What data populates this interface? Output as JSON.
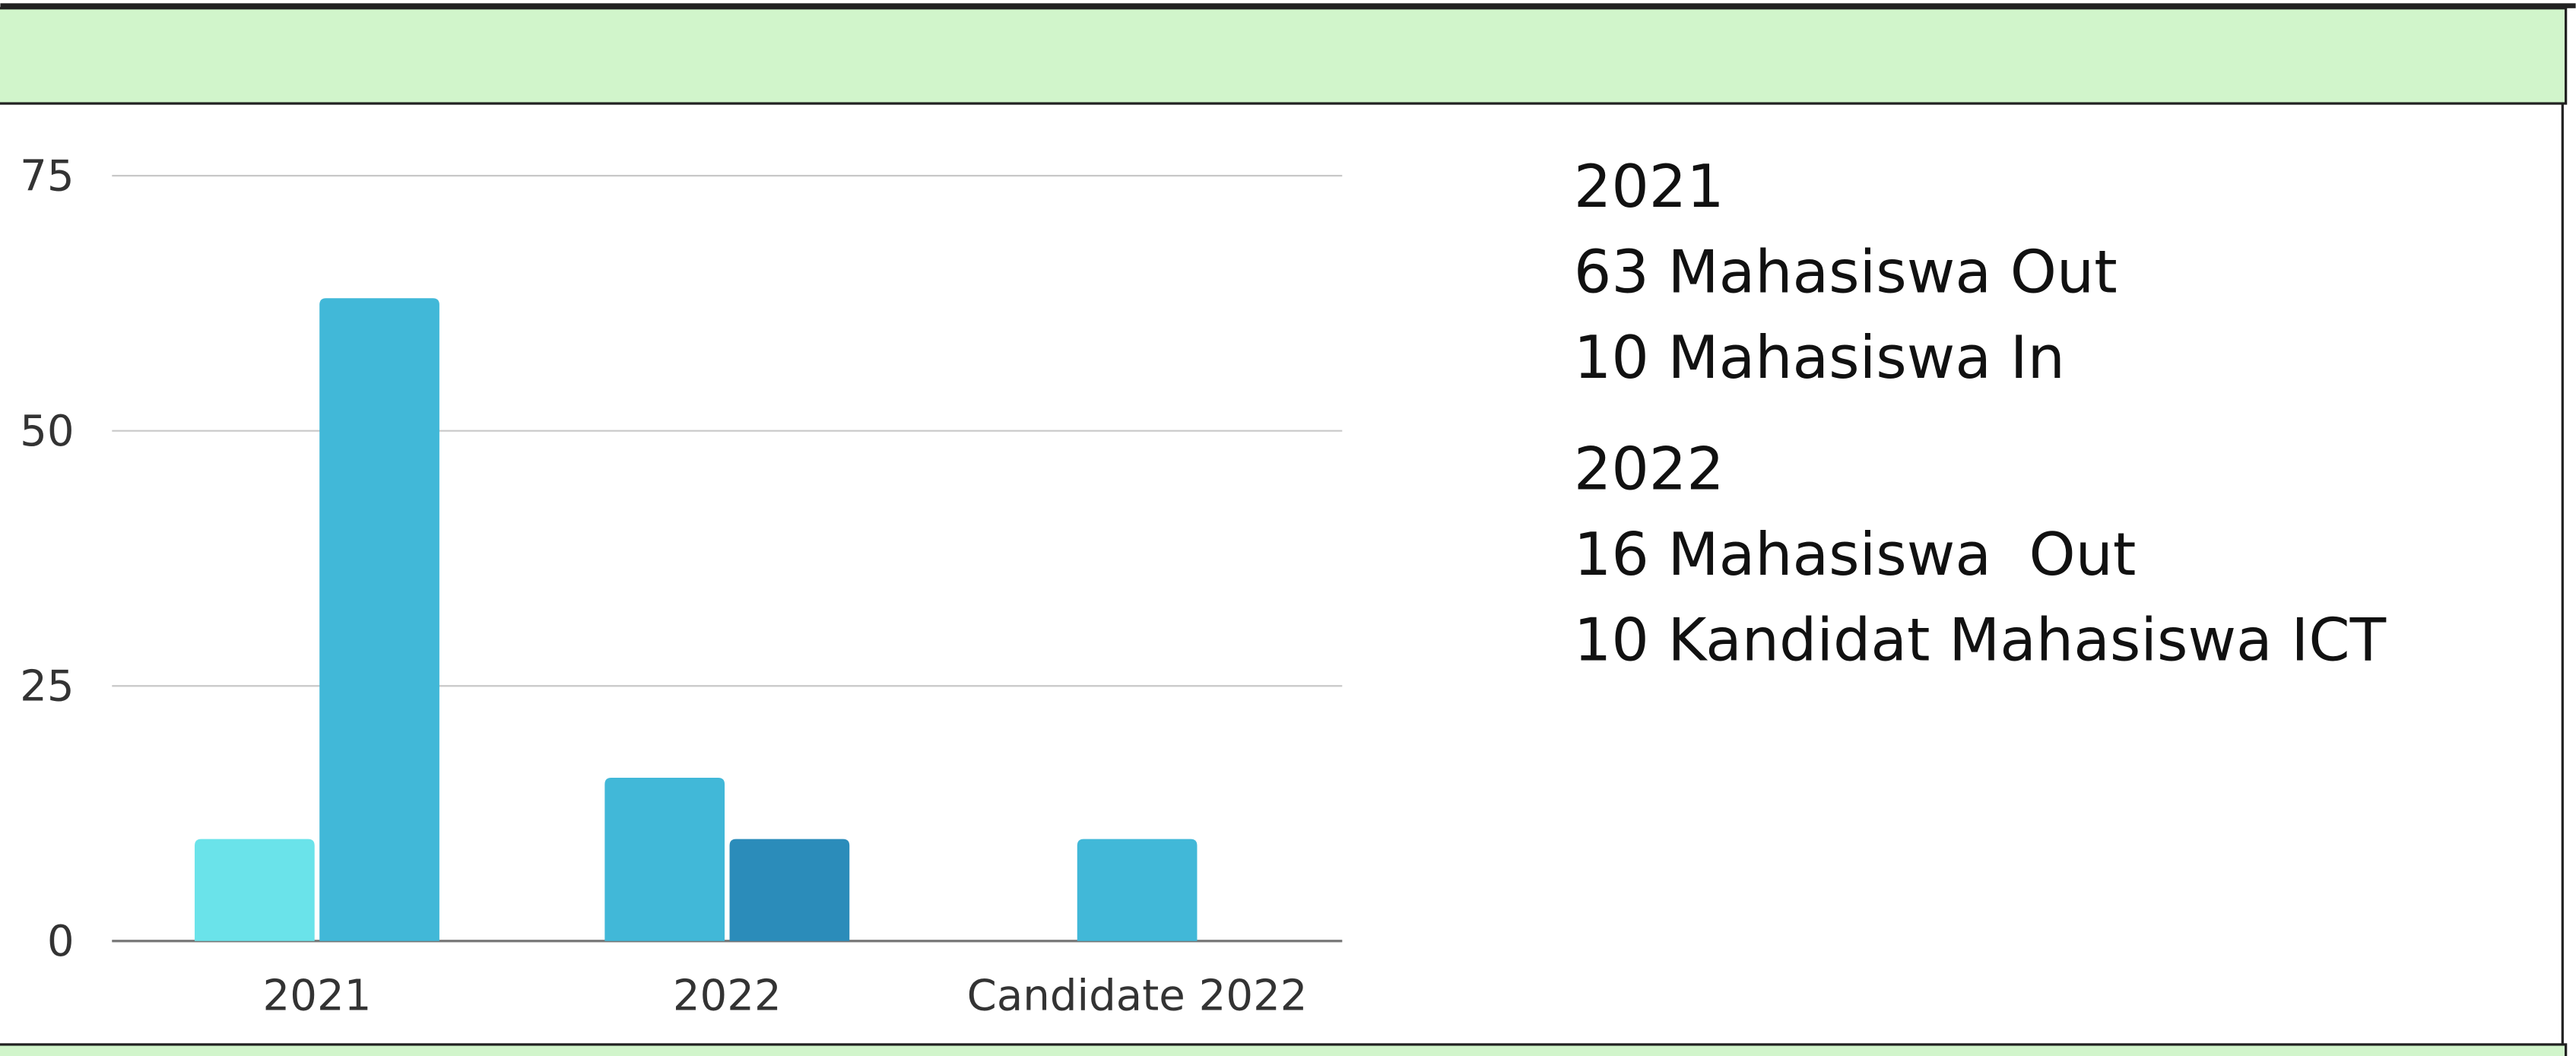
{
  "chart_data": {
    "type": "bar",
    "categories": [
      "2021",
      "2022",
      "Candidate 2022"
    ],
    "series": [
      {
        "color": "#6ae3ea",
        "values": [
          10,
          null,
          null
        ]
      },
      {
        "color": "#41b8d8",
        "values": [
          63,
          16,
          10
        ]
      },
      {
        "color": "#2b8cba",
        "values": [
          null,
          10,
          null
        ]
      }
    ],
    "ylim": [
      0,
      75
    ],
    "yticks": [
      0,
      25,
      50,
      75
    ],
    "grid": true
  },
  "summary": [
    {
      "title": "2021",
      "lines": [
        "63 Mahasiswa Out",
        "10 Mahasiswa In"
      ]
    },
    {
      "title": "2022",
      "lines": [
        "16 Mahasiswa  Out",
        "10 Kandidat Mahasiswa ICT"
      ]
    }
  ]
}
